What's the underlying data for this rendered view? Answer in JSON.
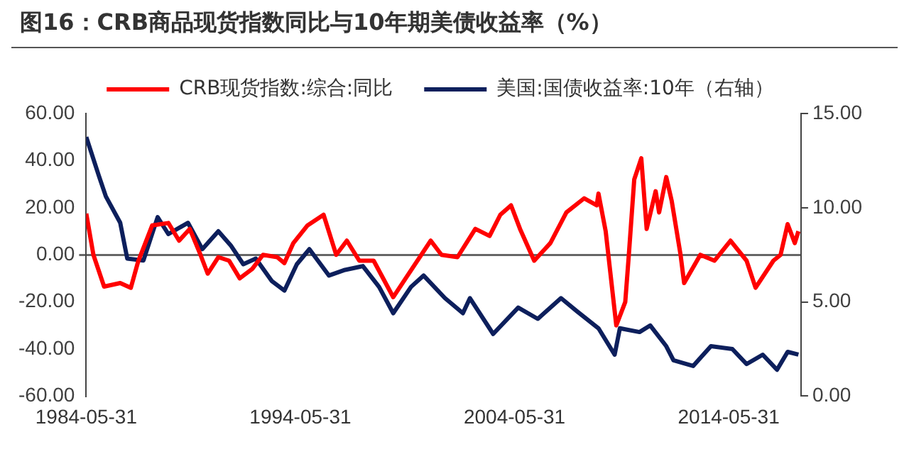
{
  "chart_data": {
    "type": "line",
    "title": "图16：CRB商品现货指数同比与10年期美债收益率（%）",
    "legend": "top",
    "marker": "none",
    "xlim": [
      "1984-05-31",
      "2017-10-15"
    ],
    "xticks": [
      "1984-05-31",
      "1994-05-31",
      "2004-05-31",
      "2014-05-31"
    ],
    "ylim": [
      -60,
      60
    ],
    "yticks": [
      {
        "value": -60,
        "label": "-60.00"
      },
      {
        "value": -40,
        "label": "-40.00"
      },
      {
        "value": -20,
        "label": "-20.00"
      },
      {
        "value": 0,
        "label": "0.00"
      },
      {
        "value": 20,
        "label": "20.00"
      },
      {
        "value": 40,
        "label": "40.00"
      },
      {
        "value": 60,
        "label": "60.00"
      }
    ],
    "y2lim": [
      0,
      15
    ],
    "y2ticks": [
      {
        "value": 0,
        "label": "0.00"
      },
      {
        "value": 5,
        "label": "5.00"
      },
      {
        "value": 10,
        "label": "10.00"
      },
      {
        "value": 15,
        "label": "15.00"
      }
    ],
    "series": [
      {
        "name": "CRB现货指数:综合:同比",
        "color": "#ff0000",
        "x": [
          "1984-06",
          "1984-10",
          "1985-04",
          "1986-01",
          "1986-07",
          "1986-11",
          "1987-07",
          "1988-04",
          "1988-10",
          "1989-04",
          "1989-10",
          "1990-02",
          "1990-08",
          "1991-02",
          "1991-08",
          "1992-03",
          "1992-09",
          "1993-05",
          "1993-09",
          "1994-02",
          "1994-10",
          "1995-07",
          "1996-02",
          "1996-08",
          "1997-03",
          "1997-11",
          "1998-10",
          "1999-05",
          "2000-07",
          "2001-01",
          "2001-10",
          "2002-08",
          "2003-04",
          "2003-10",
          "2004-04",
          "2004-09",
          "2005-05",
          "2006-02",
          "2006-11",
          "2007-09",
          "2008-04",
          "2008-05",
          "2008-09",
          "2009-03",
          "2009-08",
          "2009-10",
          "2010-01",
          "2010-05",
          "2010-08",
          "2011-01",
          "2011-03",
          "2011-07",
          "2011-10",
          "2012-03",
          "2012-05",
          "2013-02",
          "2013-10",
          "2014-07",
          "2015-04",
          "2015-09",
          "2016-07",
          "2016-11",
          "2017-03",
          "2017-07",
          "2017-09"
        ],
        "values": [
          17.5,
          0,
          -13.5,
          -12,
          -14,
          -3,
          12.5,
          13.5,
          6,
          11,
          0,
          -8,
          -1,
          -2.5,
          -10,
          -6,
          0,
          -1,
          -3.5,
          5,
          12.5,
          17,
          0,
          6,
          -2.5,
          -2.5,
          -18,
          -10,
          6,
          0,
          -1,
          11,
          8,
          17,
          21,
          11,
          -2.5,
          5,
          18,
          24,
          21,
          26,
          10,
          -30,
          -20,
          0,
          32,
          41,
          11,
          27,
          18,
          33,
          23,
          0,
          -12,
          0,
          -2.5,
          6,
          -2.5,
          -14,
          -2.5,
          0,
          13,
          5,
          10
        ]
      },
      {
        "name": "美国:国债收益率:10年（右轴）",
        "color": "#0d1f5c",
        "axis": "y2",
        "x": [
          "1984-06",
          "1985-01",
          "1985-05",
          "1986-01",
          "1986-05",
          "1987-02",
          "1987-10",
          "1988-04",
          "1989-03",
          "1989-11",
          "1990-08",
          "1991-03",
          "1991-10",
          "1992-05",
          "1993-02",
          "1993-09",
          "1994-04",
          "1994-11",
          "1995-10",
          "1996-07",
          "1997-05",
          "1998-02",
          "1998-10",
          "1999-08",
          "2000-03",
          "2001-03",
          "2002-01",
          "2002-05",
          "2003-06",
          "2004-08",
          "2005-07",
          "2006-08",
          "2007-05",
          "2008-05",
          "2009-02",
          "2009-05",
          "2010-04",
          "2010-10",
          "2011-07",
          "2011-11",
          "2012-10",
          "2013-08",
          "2014-08",
          "2015-04",
          "2016-01",
          "2016-09",
          "2017-03",
          "2017-09"
        ],
        "values": [
          13.75,
          11.7,
          10.6,
          9.2,
          7.3,
          7.2,
          9.5,
          8.6,
          9.2,
          7.8,
          8.75,
          8.0,
          7.0,
          7.3,
          6.1,
          5.6,
          7.0,
          7.8,
          6.4,
          6.7,
          6.9,
          5.8,
          4.4,
          5.8,
          6.4,
          5.2,
          4.4,
          5.2,
          3.3,
          4.7,
          4.1,
          5.2,
          4.5,
          3.6,
          2.2,
          3.6,
          3.4,
          3.75,
          2.65,
          1.9,
          1.6,
          2.65,
          2.5,
          1.7,
          2.2,
          1.4,
          2.35,
          2.2
        ]
      }
    ]
  }
}
